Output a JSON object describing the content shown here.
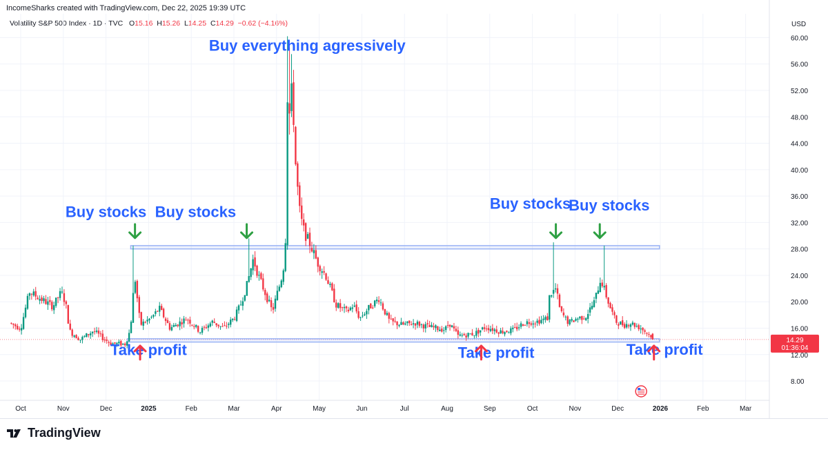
{
  "header": {
    "text": "IncomeSharks created with TradingView.com, Dec 22, 2025 19:39 UTC"
  },
  "legend": {
    "symbol": "Volatility S&P 500 Index · 1D · TVC",
    "o_label": "O",
    "o": "15.16",
    "h_label": "H",
    "h": "15.26",
    "l_label": "L",
    "l": "14.25",
    "c_label": "C",
    "c": "14.29",
    "change": "−0.62 (−4.16%)"
  },
  "price_axis": {
    "currency": "USD",
    "last_price": "14.29",
    "countdown": "01:36:04"
  },
  "footer": {
    "brand": "TradingView"
  },
  "colors": {
    "up": "#089981",
    "down": "#f23645",
    "annotation": "#2962ff",
    "buy_arrow": "#2ea043",
    "sell_arrow": "#f23645",
    "band": "#9bb4f5"
  },
  "chart_data": {
    "type": "candlestick",
    "title": "Volatility S&P 500 Index",
    "ylabel": "USD",
    "ylim": [
      4,
      61
    ],
    "y_ticks": [
      "8.00",
      "12.00",
      "16.00",
      "20.00",
      "24.00",
      "28.00",
      "32.00",
      "36.00",
      "40.00",
      "44.00",
      "48.00",
      "52.00",
      "56.00",
      "60.00"
    ],
    "x_ticks": [
      "Oct",
      "Nov",
      "Dec",
      "2025",
      "Feb",
      "Mar",
      "Apr",
      "May",
      "Jun",
      "Jul",
      "Aug",
      "Sep",
      "Oct",
      "Nov",
      "Dec",
      "2026",
      "Feb",
      "Mar"
    ],
    "x_tick_months": [
      0,
      1,
      2,
      3,
      4,
      5,
      6,
      7,
      8,
      9,
      10,
      11,
      12,
      13,
      14,
      15,
      16,
      17
    ],
    "x_range_months": [
      -0.2,
      17.8
    ],
    "keypoints": [
      [
        -0.22,
        16.8
      ],
      [
        0.05,
        16.0
      ],
      [
        0.25,
        21.5
      ],
      [
        0.5,
        20.5
      ],
      [
        0.8,
        19.3
      ],
      [
        1.0,
        21.5
      ],
      [
        1.1,
        19.8
      ],
      [
        1.2,
        15.5
      ],
      [
        1.45,
        14.3
      ],
      [
        1.75,
        15.6
      ],
      [
        2.15,
        13.7
      ],
      [
        2.5,
        13.6
      ],
      [
        2.62,
        15.8
      ],
      [
        2.72,
        24.0
      ],
      [
        2.85,
        16.5
      ],
      [
        3.1,
        17.5
      ],
      [
        3.3,
        19.0
      ],
      [
        3.55,
        16.0
      ],
      [
        3.95,
        17.5
      ],
      [
        4.25,
        15.5
      ],
      [
        4.55,
        17.0
      ],
      [
        4.8,
        16.0
      ],
      [
        5.05,
        17.5
      ],
      [
        5.2,
        19.5
      ],
      [
        5.35,
        22.5
      ],
      [
        5.5,
        26.5
      ],
      [
        5.62,
        24.0
      ],
      [
        5.8,
        21.0
      ],
      [
        5.95,
        18.5
      ],
      [
        6.05,
        21.0
      ],
      [
        6.12,
        22.5
      ],
      [
        6.2,
        24.5
      ],
      [
        6.25,
        28.5
      ],
      [
        6.3,
        36.0
      ],
      [
        6.35,
        46.0
      ],
      [
        6.4,
        52.0
      ],
      [
        6.45,
        47.5
      ],
      [
        6.5,
        40.0
      ],
      [
        6.6,
        33.0
      ],
      [
        6.7,
        30.5
      ],
      [
        6.85,
        28.5
      ],
      [
        7.0,
        26.0
      ],
      [
        7.2,
        24.0
      ],
      [
        7.45,
        19.5
      ],
      [
        7.7,
        18.5
      ],
      [
        7.85,
        19.5
      ],
      [
        8.0,
        17.5
      ],
      [
        8.2,
        19.0
      ],
      [
        8.45,
        20.5
      ],
      [
        8.55,
        19.0
      ],
      [
        8.7,
        17.0
      ],
      [
        9.0,
        16.5
      ],
      [
        9.3,
        16.8
      ],
      [
        9.6,
        16.2
      ],
      [
        10.0,
        15.8
      ],
      [
        10.1,
        16.8
      ],
      [
        10.3,
        14.8
      ],
      [
        10.7,
        15.2
      ],
      [
        10.95,
        16.2
      ],
      [
        11.3,
        15.5
      ],
      [
        11.6,
        15.7
      ],
      [
        11.85,
        16.8
      ],
      [
        12.0,
        17.0
      ],
      [
        12.15,
        17.0
      ],
      [
        12.4,
        17.5
      ],
      [
        12.45,
        21.0
      ],
      [
        12.6,
        22.0
      ],
      [
        12.7,
        18.5
      ],
      [
        12.9,
        16.8
      ],
      [
        13.1,
        17.5
      ],
      [
        13.3,
        17.8
      ],
      [
        13.5,
        20.0
      ],
      [
        13.65,
        23.5
      ],
      [
        13.75,
        21.5
      ],
      [
        13.85,
        19.5
      ],
      [
        14.0,
        17.0
      ],
      [
        14.2,
        16.5
      ],
      [
        14.35,
        16.8
      ],
      [
        14.6,
        16.0
      ],
      [
        14.75,
        15.2
      ],
      [
        14.82,
        14.9
      ]
    ],
    "spikes": [
      {
        "month": 2.62,
        "high": 28.5
      },
      {
        "month": 6.25,
        "high": 60.2
      },
      {
        "month": 6.3,
        "high": 58.5
      },
      {
        "month": 6.35,
        "high": 57.5
      },
      {
        "month": 5.35,
        "high": 29.6
      },
      {
        "month": 12.48,
        "high": 29.0
      },
      {
        "month": 13.7,
        "high": 28.5
      }
    ],
    "last": {
      "open": 15.16,
      "high": 15.26,
      "low": 14.25,
      "close": 14.29
    },
    "levels": [
      {
        "name": "resistance-band",
        "y_low": 28.0,
        "y_high": 28.5,
        "from_month": 2.58,
        "to_month": 14.98
      },
      {
        "name": "support-band",
        "y_low": 13.9,
        "y_high": 14.4,
        "from_month": 2.5,
        "to_month": 14.98
      }
    ],
    "annotations": [
      {
        "text": "Buy everything agressively",
        "month": 6.72,
        "y": 58.0,
        "kind": "label"
      },
      {
        "text": "Buy stocks",
        "month": 2.0,
        "y": 32.8,
        "kind": "label"
      },
      {
        "text": "Buy stocks",
        "month": 4.1,
        "y": 32.8,
        "kind": "label"
      },
      {
        "text": "Buy stocks",
        "month": 11.95,
        "y": 34.1,
        "kind": "label"
      },
      {
        "text": "Buy stocks",
        "month": 13.8,
        "y": 33.8,
        "kind": "label"
      },
      {
        "text": "Take profit",
        "month": 3.0,
        "y": 11.9,
        "kind": "label"
      },
      {
        "text": "Take profit",
        "month": 11.15,
        "y": 11.5,
        "kind": "label"
      },
      {
        "text": "Take profit",
        "month": 15.1,
        "y": 12.0,
        "kind": "label"
      }
    ],
    "arrows": [
      {
        "dir": "down",
        "month": 2.68,
        "y": 30.7
      },
      {
        "dir": "down",
        "month": 5.3,
        "y": 30.7
      },
      {
        "dir": "down",
        "month": 12.55,
        "y": 30.7
      },
      {
        "dir": "down",
        "month": 13.58,
        "y": 30.7
      },
      {
        "dir": "up",
        "month": 2.8,
        "y": 12.3
      },
      {
        "dir": "up",
        "month": 10.8,
        "y": 12.3
      },
      {
        "dir": "up",
        "month": 14.85,
        "y": 12.3
      }
    ]
  }
}
